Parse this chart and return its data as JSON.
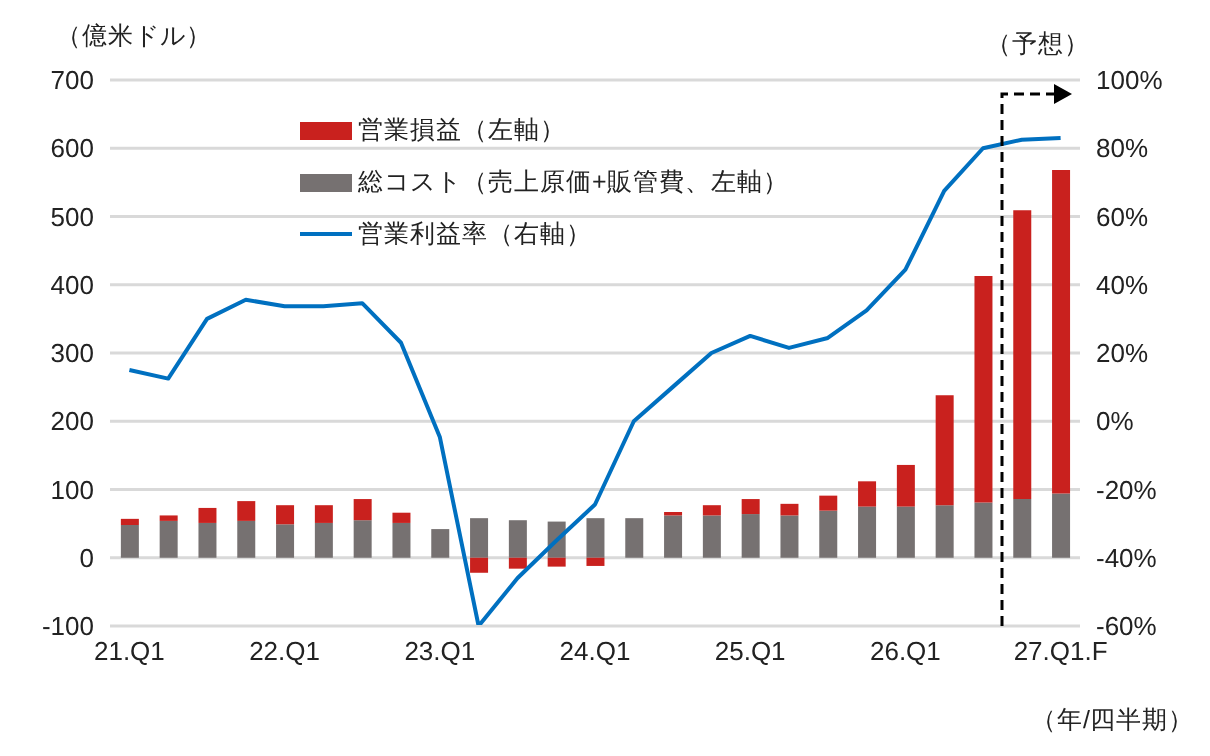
{
  "chart_data": {
    "type": "bar",
    "stacked": true,
    "ylabel": "（億米ドル）",
    "xlabel": "（年/四半期）",
    "categories": [
      "21.Q1",
      null,
      null,
      null,
      "22.Q1",
      null,
      null,
      null,
      "23.Q1",
      null,
      null,
      null,
      "24.Q1",
      null,
      null,
      null,
      "25.Q1",
      null,
      null,
      null,
      "26.Q1",
      null,
      null,
      null,
      "27.Q1.F"
    ],
    "series": [
      {
        "name": "総コスト（売上原価+販管費、左軸）",
        "color": "#767171",
        "values": [
          48,
          54,
          51,
          54,
          49,
          51,
          55,
          51,
          42,
          58,
          55,
          53,
          58,
          58,
          62,
          62,
          64,
          62,
          69,
          75,
          75,
          77,
          81,
          86,
          94
        ]
      },
      {
        "name": "営業損益（左軸）",
        "color": "#c9211e",
        "values": [
          9,
          8,
          22,
          29,
          28,
          26,
          31,
          15,
          0,
          -22,
          -16,
          -13,
          -12,
          0,
          5,
          15,
          22,
          17,
          22,
          37,
          61,
          161,
          332,
          423,
          474
        ]
      },
      {
        "name": "営業利益率（右軸）",
        "type": "line",
        "axis": "y2",
        "color": "#0070c0",
        "values": [
          15,
          12.5,
          30,
          35.6,
          33.7,
          33.7,
          34.6,
          23,
          -4.6,
          -60,
          -46,
          -35,
          -24.4,
          0,
          10,
          20,
          25,
          21.5,
          24.4,
          32.5,
          44.4,
          67.5,
          80,
          82.5,
          83
        ]
      }
    ],
    "ylim": [
      -100,
      700
    ],
    "yticks": [
      -100,
      0,
      100,
      200,
      300,
      400,
      500,
      600,
      700
    ],
    "y2lim": [
      -60,
      100
    ],
    "y2ticks": [
      {
        "value": -60,
        "label": "-60%"
      },
      {
        "value": -40,
        "label": "-40%"
      },
      {
        "value": -20,
        "label": "-20%"
      },
      {
        "value": 0,
        "label": "0%"
      },
      {
        "value": 20,
        "label": "20%"
      },
      {
        "value": 40,
        "label": "40%"
      },
      {
        "value": 60,
        "label": "60%"
      },
      {
        "value": 80,
        "label": "80%"
      },
      {
        "value": 100,
        "label": "100%"
      }
    ],
    "grid": "y",
    "legend": "top",
    "marker": "none",
    "line_style": "solid",
    "annotations": [
      "（予想）"
    ]
  }
}
